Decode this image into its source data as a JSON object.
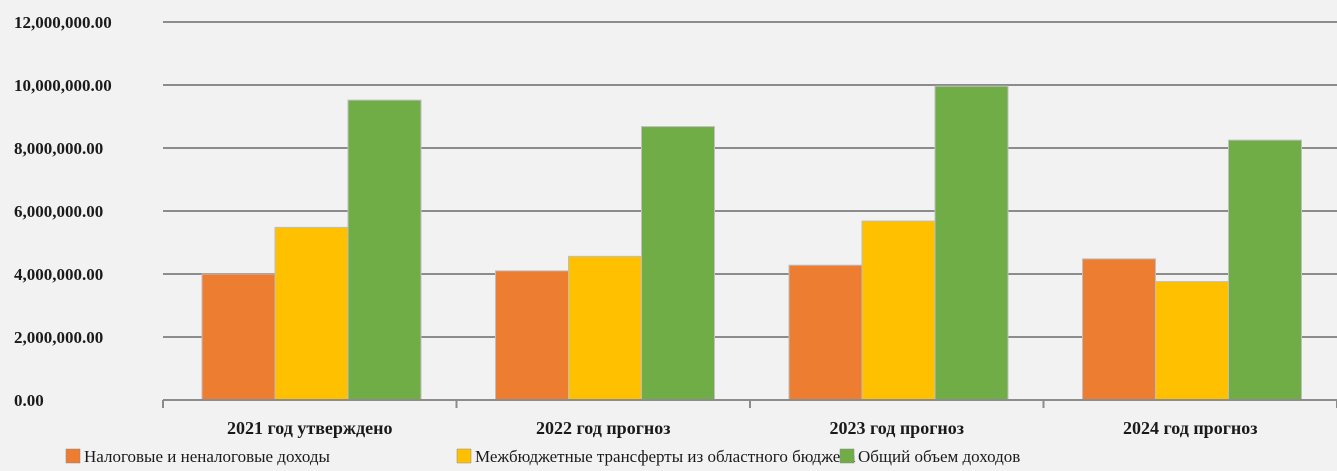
{
  "chart_data": {
    "type": "bar",
    "categories": [
      "2021 год утверждено",
      "2022 год прогноз",
      "2023 год прогноз",
      "2024 год прогноз"
    ],
    "series": [
      {
        "name": "Налоговые и неналоговые доходы",
        "color": "#ed7d31",
        "values": [
          4000000,
          4100000,
          4280000,
          4480000
        ]
      },
      {
        "name": "Межбюджетные трансферты из областного бюджета",
        "color": "#ffc000",
        "values": [
          5480000,
          4560000,
          5680000,
          3760000
        ]
      },
      {
        "name": "Общий объем доходов",
        "color": "#70ad47",
        "values": [
          9520000,
          8680000,
          9960000,
          8250000
        ]
      }
    ],
    "yticks": [
      "0.00",
      "2,000,000.00",
      "4,000,000.00",
      "6,000,000.00",
      "8,000,000.00",
      "10,000,000.00",
      "12,000,000.00"
    ],
    "ylim": [
      0,
      12000000
    ],
    "grid": true,
    "legend": "bottom"
  }
}
